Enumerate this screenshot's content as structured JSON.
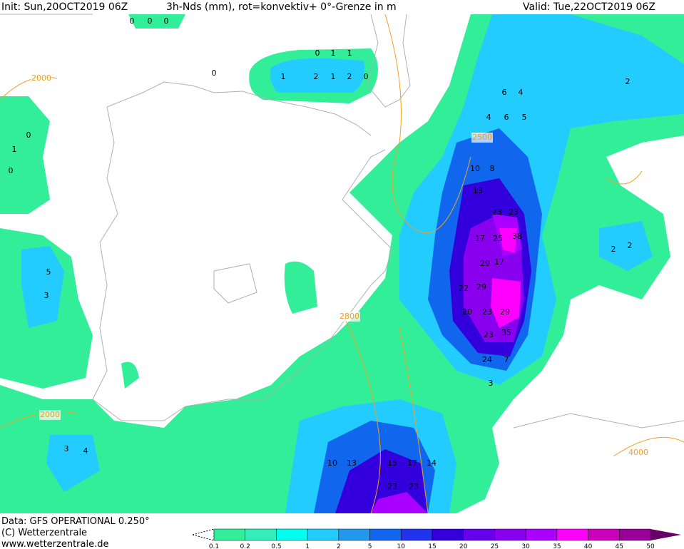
{
  "header": {
    "init": "Init: Sun,20OCT2019 06Z",
    "title": "3h-Nds (mm), rot=konvektiv+ 0°-Grenze in m",
    "valid": "Valid: Tue,22OCT2019 06Z"
  },
  "footer": {
    "data": "Data: GFS OPERATIONAL 0.250°",
    "copyright": "(C) Wetterzentrale",
    "url": "www.wetterzentrale.de"
  },
  "colorbar": {
    "levels": [
      0.1,
      0.2,
      0.5,
      1,
      2,
      5,
      10,
      15,
      20,
      25,
      30,
      35,
      40,
      45,
      50
    ],
    "colors": [
      "#33ee99",
      "#33eebb",
      "#00ffee",
      "#22ccff",
      "#2299ee",
      "#1166ee",
      "#2233ee",
      "#3300dd",
      "#6600ee",
      "#8800ee",
      "#aa00ff",
      "#ff00ff",
      "#cc00bb",
      "#990099",
      "#660066"
    ]
  },
  "contour_labels": [
    2000,
    2500,
    2800,
    2000,
    4000
  ],
  "grid_labels": [
    0,
    0,
    0,
    0,
    1,
    1,
    0,
    1,
    2,
    1,
    2,
    0,
    6,
    4,
    4,
    6,
    5,
    10,
    8,
    13,
    23,
    23,
    17,
    25,
    38,
    29,
    17,
    29,
    22,
    20,
    23,
    29,
    23,
    35,
    24,
    7,
    3,
    15,
    17,
    14,
    13,
    10,
    23,
    23,
    5,
    3,
    3,
    4,
    2,
    2,
    2,
    0,
    0,
    1
  ]
}
